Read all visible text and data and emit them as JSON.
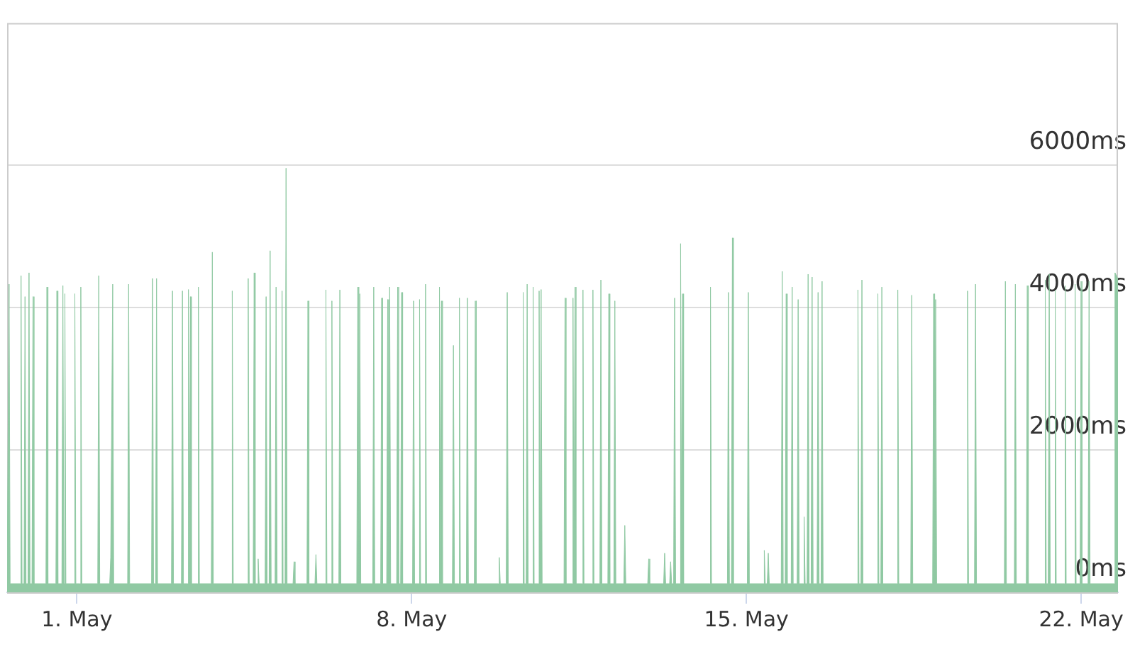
{
  "chart_data": {
    "type": "area",
    "x": [
      "--04-29T13:00",
      "--04-29T13:30",
      "--04-29T14:00",
      "--04-29T14:30",
      "--04-29T19:30",
      "--04-29T20:00",
      "--04-29T20:30",
      "--04-29T21:30",
      "--04-29T22:00",
      "--04-29T22:30",
      "--04-29T23:30",
      "--04-30T00:00",
      "--04-30T00:30",
      "--04-30T01:30",
      "--04-30T02:00",
      "--04-30T02:30",
      "--04-30T08:30",
      "--04-30T09:00",
      "--04-30T09:30",
      "--04-30T13:30",
      "--04-30T14:00",
      "--04-30T14:30",
      "--04-30T16:30",
      "--04-30T17:00",
      "--04-30T17:30",
      "--04-30T18:00",
      "--04-30T18:30",
      "--04-30T22:30",
      "--04-30T23:00",
      "--04-30T23:30",
      "--05-01T01:30",
      "--05-01T02:00",
      "--05-01T02:30",
      "--05-01T10:30",
      "--05-01T11:00",
      "--05-01T11:30",
      "--05-01T16:30",
      "--05-01T17:00",
      "--05-01T18:00",
      "--05-01T18:30",
      "--05-02T01:30",
      "--05-02T02:00",
      "--05-02T02:30",
      "--05-02T13:30",
      "--05-02T14:00",
      "--05-02T14:30",
      "--05-02T15:30",
      "--05-02T16:00",
      "--05-02T16:30",
      "--05-02T23:30",
      "--05-03T00:00",
      "--05-03T00:30",
      "--05-03T04:30",
      "--05-03T05:00",
      "--05-03T05:30",
      "--05-03T07:30",
      "--05-03T08:00",
      "--05-03T08:30",
      "--05-03T09:00",
      "--05-03T09:30",
      "--05-03T12:30",
      "--05-03T13:00",
      "--05-03T13:30",
      "--05-03T19:30",
      "--05-03T20:00",
      "--05-03T20:30",
      "--05-04T05:30",
      "--05-04T06:00",
      "--05-04T06:30",
      "--05-04T13:30",
      "--05-04T14:00",
      "--05-04T14:30",
      "--05-04T16:30",
      "--05-04T17:00",
      "--05-04T17:30",
      "--05-04T18:30",
      "--05-04T19:00",
      "--05-04T19:30",
      "--05-04T22:30",
      "--05-04T23:00",
      "--05-04T23:30",
      "--05-05T00:30",
      "--05-05T01:00",
      "--05-05T01:30",
      "--05-05T03:30",
      "--05-05T04:00",
      "--05-05T04:30",
      "--05-05T06:30",
      "--05-05T07:00",
      "--05-05T07:30",
      "--05-05T08:30",
      "--05-05T09:00",
      "--05-05T09:30",
      "--05-05T12:30",
      "--05-05T13:00",
      "--05-05T13:30",
      "--05-05T19:30",
      "--05-05T20:00",
      "--05-05T20:30",
      "--05-05T23:30",
      "--05-06T00:00",
      "--05-06T00:30",
      "--05-06T04:30",
      "--05-06T05:00",
      "--05-06T05:30",
      "--05-06T07:30",
      "--05-06T08:00",
      "--05-06T08:30",
      "--05-06T11:30",
      "--05-06T12:00",
      "--05-06T12:30",
      "--05-06T20:30",
      "--05-06T21:00",
      "--05-06T21:30",
      "--05-06T22:00",
      "--05-06T22:30",
      "--05-07T04:30",
      "--05-07T05:00",
      "--05-07T05:30",
      "--05-07T08:30",
      "--05-07T09:00",
      "--05-07T09:30",
      "--05-07T11:30",
      "--05-07T12:00",
      "--05-07T12:30",
      "--05-07T13:00",
      "--05-07T13:30",
      "--05-07T16:30",
      "--05-07T17:00",
      "--05-07T17:30",
      "--05-07T18:30",
      "--05-07T19:00",
      "--05-07T19:30",
      "--05-08T00:30",
      "--05-08T01:00",
      "--05-08T01:30",
      "--05-08T03:30",
      "--05-08T04:00",
      "--05-08T04:30",
      "--05-08T06:30",
      "--05-08T07:00",
      "--05-08T07:30",
      "--05-08T13:30",
      "--05-08T14:00",
      "--05-08T14:30",
      "--05-08T15:00",
      "--05-08T15:30",
      "--05-08T20:30",
      "--05-08T21:00",
      "--05-08T21:30",
      "--05-08T23:30",
      "--05-09T00:00",
      "--05-09T00:30",
      "--05-09T03:30",
      "--05-09T04:00",
      "--05-09T04:30",
      "--05-09T07:30",
      "--05-09T08:00",
      "--05-09T08:30",
      "--05-09T19:30",
      "--05-09T20:00",
      "--05-09T20:30",
      "--05-09T23:30",
      "--05-10T00:00",
      "--05-10T00:30",
      "--05-10T07:30",
      "--05-10T08:00",
      "--05-10T08:30",
      "--05-10T09:30",
      "--05-10T10:00",
      "--05-10T10:30",
      "--05-10T12:30",
      "--05-10T13:00",
      "--05-10T13:30",
      "--05-10T15:30",
      "--05-10T16:00",
      "--05-10T16:30",
      "--05-10T17:00",
      "--05-10T17:30",
      "--05-11T04:30",
      "--05-11T05:00",
      "--05-11T05:30",
      "--05-11T08:30",
      "--05-11T09:00",
      "--05-11T09:30",
      "--05-11T10:00",
      "--05-11T10:30",
      "--05-11T13:30",
      "--05-11T14:00",
      "--05-11T14:30",
      "--05-11T18:30",
      "--05-11T19:00",
      "--05-11T19:30",
      "--05-11T22:30",
      "--05-11T23:00",
      "--05-11T23:30",
      "--05-12T02:30",
      "--05-12T03:00",
      "--05-12T03:30",
      "--05-12T05:30",
      "--05-12T06:00",
      "--05-12T06:30",
      "--05-12T10:30",
      "--05-12T11:00",
      "--05-12T11:30",
      "--05-12T22:30",
      "--05-12T23:00",
      "--05-12T23:30",
      "--05-13T06:30",
      "--05-13T07:00",
      "--05-13T07:30",
      "--05-13T09:30",
      "--05-13T10:00",
      "--05-13T10:30",
      "--05-13T11:30",
      "--05-13T12:00",
      "--05-13T12:30",
      "--05-13T14:30",
      "--05-13T15:00",
      "--05-13T15:30",
      "--05-13T16:00",
      "--05-13T16:30",
      "--05-14T05:30",
      "--05-14T06:00",
      "--05-14T06:30",
      "--05-14T14:30",
      "--05-14T15:00",
      "--05-14T15:30",
      "--05-14T16:30",
      "--05-14T17:00",
      "--05-14T17:30",
      "--05-15T00:30",
      "--05-15T01:00",
      "--05-15T01:30",
      "--05-15T08:30",
      "--05-15T09:00",
      "--05-15T09:30",
      "--05-15T10:30",
      "--05-15T11:00",
      "--05-15T11:30",
      "--05-15T17:30",
      "--05-15T18:00",
      "--05-15T18:30",
      "--05-15T19:30",
      "--05-15T20:00",
      "--05-15T20:30",
      "--05-15T22:30",
      "--05-15T23:00",
      "--05-15T23:30",
      "--05-16T01:30",
      "--05-16T02:00",
      "--05-16T02:30",
      "--05-16T04:30",
      "--05-16T05:00",
      "--05-16T05:30",
      "--05-16T06:30",
      "--05-16T07:00",
      "--05-16T07:30",
      "--05-16T08:30",
      "--05-16T09:00",
      "--05-16T09:30",
      "--05-16T11:30",
      "--05-16T12:00",
      "--05-16T12:30",
      "--05-16T13:30",
      "--05-16T14:00",
      "--05-16T14:30",
      "--05-17T07:30",
      "--05-17T08:00",
      "--05-17T08:30",
      "--05-17T09:30",
      "--05-17T10:00",
      "--05-17T10:30",
      "--05-17T17:30",
      "--05-17T18:00",
      "--05-17T18:30",
      "--05-17T19:30",
      "--05-17T20:00",
      "--05-17T20:30",
      "--05-18T03:30",
      "--05-18T04:00",
      "--05-18T04:30",
      "--05-18T10:30",
      "--05-18T11:00",
      "--05-18T11:30",
      "--05-18T21:30",
      "--05-18T22:00",
      "--05-18T22:30",
      "--05-18T23:00",
      "--05-18T23:30",
      "--05-19T14:30",
      "--05-19T15:00",
      "--05-19T15:30",
      "--05-19T18:30",
      "--05-19T19:00",
      "--05-19T19:30",
      "--05-20T09:30",
      "--05-20T10:00",
      "--05-20T10:30",
      "--05-20T14:30",
      "--05-20T15:00",
      "--05-20T15:30",
      "--05-20T20:30",
      "--05-20T21:00",
      "--05-20T21:30",
      "--05-21T05:30",
      "--05-21T06:00",
      "--05-21T06:30",
      "--05-21T07:30",
      "--05-21T08:00",
      "--05-21T08:30",
      "--05-21T10:30",
      "--05-21T11:00",
      "--05-21T11:30",
      "--05-21T15:30",
      "--05-21T16:00",
      "--05-21T16:30",
      "--05-21T20:30",
      "--05-21T21:00",
      "--05-21T21:30",
      "--05-21T23:30",
      "--05-22T00:00",
      "--05-22T00:30",
      "--05-22T03:30",
      "--05-22T04:00",
      "--05-22T04:30",
      "--05-22T16:30",
      "--05-22T17:00",
      "--05-22T18:30"
    ],
    "series": [
      {
        "color": "#90c9a3",
        "values": [
          120,
          120,
          4330,
          120,
          120,
          4450,
          120,
          120,
          4155,
          120,
          120,
          4490,
          120,
          120,
          4155,
          120,
          120,
          4290,
          120,
          120,
          4235,
          120,
          120,
          4310,
          120,
          4195,
          120,
          120,
          4195,
          120,
          120,
          4290,
          120,
          120,
          4450,
          120,
          120,
          490,
          4330,
          120,
          120,
          4330,
          120,
          120,
          4410,
          120,
          120,
          4410,
          120,
          120,
          4235,
          120,
          120,
          4235,
          120,
          120,
          4255,
          120,
          4155,
          120,
          120,
          4290,
          120,
          120,
          4780,
          120,
          120,
          4235,
          120,
          120,
          4410,
          120,
          120,
          4490,
          120,
          120,
          470,
          120,
          120,
          4155,
          120,
          120,
          4800,
          120,
          120,
          4290,
          120,
          120,
          4235,
          120,
          120,
          5960,
          120,
          120,
          430,
          120,
          120,
          4095,
          120,
          120,
          530,
          120,
          120,
          4250,
          120,
          120,
          4095,
          120,
          120,
          4250,
          120,
          120,
          4290,
          120,
          4195,
          120,
          120,
          4290,
          120,
          120,
          4135,
          120,
          120,
          4115,
          120,
          4290,
          120,
          120,
          4290,
          120,
          120,
          4215,
          120,
          120,
          4095,
          120,
          120,
          4115,
          120,
          120,
          4330,
          120,
          120,
          4290,
          120,
          4095,
          120,
          120,
          3470,
          120,
          120,
          4135,
          120,
          120,
          4135,
          120,
          120,
          4095,
          120,
          120,
          490,
          120,
          120,
          4215,
          120,
          120,
          4215,
          120,
          120,
          4330,
          120,
          120,
          4290,
          120,
          120,
          4235,
          120,
          4255,
          120,
          120,
          4135,
          120,
          120,
          4135,
          120,
          4290,
          120,
          120,
          4250,
          120,
          120,
          4250,
          120,
          120,
          4390,
          120,
          120,
          4195,
          120,
          120,
          4095,
          120,
          120,
          940,
          120,
          120,
          470,
          120,
          120,
          550,
          120,
          120,
          430,
          120,
          120,
          4135,
          120,
          120,
          4900,
          120,
          4195,
          120,
          120,
          4290,
          120,
          120,
          4215,
          120,
          120,
          4980,
          120,
          120,
          4215,
          120,
          120,
          590,
          120,
          120,
          550,
          120,
          120,
          4510,
          120,
          120,
          4195,
          120,
          120,
          4290,
          120,
          120,
          4115,
          120,
          120,
          1060,
          120,
          120,
          4470,
          120,
          120,
          4430,
          120,
          120,
          4215,
          120,
          120,
          4370,
          120,
          120,
          4250,
          120,
          120,
          4390,
          120,
          120,
          4195,
          120,
          120,
          4290,
          120,
          120,
          4250,
          120,
          120,
          4175,
          120,
          120,
          4195,
          120,
          4115,
          120,
          120,
          4235,
          120,
          120,
          4330,
          120,
          120,
          4370,
          120,
          120,
          4330,
          120,
          120,
          4310,
          120,
          120,
          4390,
          120,
          120,
          4470,
          120,
          120,
          4250,
          120,
          120,
          4310,
          120,
          120,
          4330,
          120,
          120,
          4370,
          120,
          120,
          4370,
          120,
          120,
          4490,
          4400
        ]
      }
    ],
    "xlim": [
      "--04-29T13:00",
      "--05-22T18:30"
    ],
    "xticks": [
      {
        "value": "--05-01",
        "label": "1. May"
      },
      {
        "value": "--05-08",
        "label": "8. May"
      },
      {
        "value": "--05-15",
        "label": "15. May"
      },
      {
        "value": "--05-22",
        "label": "22. May"
      }
    ],
    "ylim": [
      0,
      8000
    ],
    "yticks": [
      {
        "value": 0,
        "label": "0ms"
      },
      {
        "value": 2000,
        "label": "2000ms"
      },
      {
        "value": 4000,
        "label": "4000ms"
      },
      {
        "value": 6000,
        "label": "6000ms"
      }
    ],
    "grid": "y"
  }
}
